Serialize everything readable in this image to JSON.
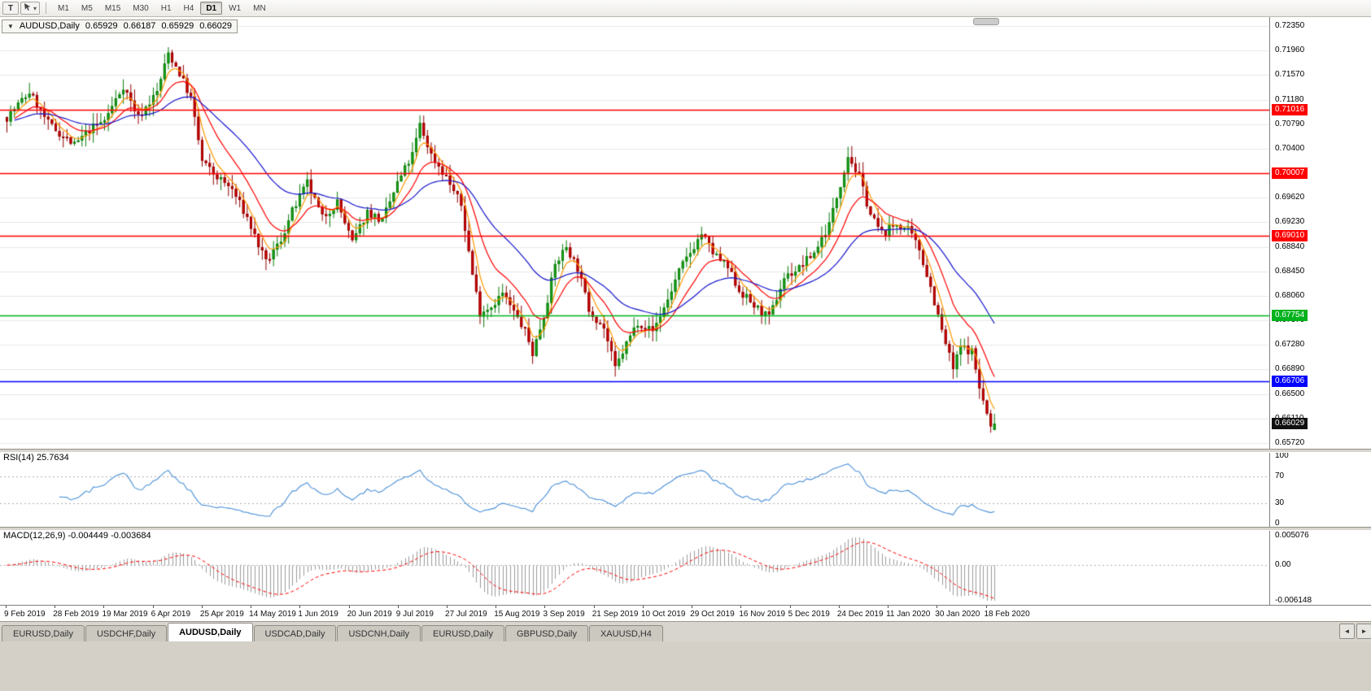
{
  "icons": {
    "dropdown": "▾",
    "tab_scroll_left": "◄",
    "tab_scroll_right": "►"
  },
  "toolbar": {
    "pointer_button_label": "T",
    "timeframes": [
      "M1",
      "M5",
      "M15",
      "M30",
      "H1",
      "H4",
      "D1",
      "W1",
      "MN"
    ],
    "active_timeframe": "D1"
  },
  "chart": {
    "symbol_header": {
      "collapse_icon": "▼",
      "title": "AUDUSD,Daily",
      "open": "0.65929",
      "high": "0.66187",
      "low": "0.65929",
      "close": "0.66029"
    },
    "price_axis": {
      "ticks": [
        "0.72350",
        "0.71960",
        "0.71570",
        "0.71180",
        "0.70790",
        "0.70400",
        "0.70010",
        "0.69620",
        "0.69230",
        "0.68840",
        "0.68450",
        "0.68060",
        "0.67670",
        "0.67280",
        "0.66890",
        "0.66500",
        "0.66110",
        "0.65720"
      ]
    },
    "levels": [
      {
        "price": 0.71016,
        "label": "0.71016",
        "color": "#FF0000",
        "width": 1.3
      },
      {
        "price": 0.70007,
        "label": "0.70007",
        "color": "#FF0000",
        "width": 1.3
      },
      {
        "price": 0.6901,
        "label": "0.69010",
        "color": "#FF0000",
        "width": 1.3
      },
      {
        "price": 0.67754,
        "label": "0.67754",
        "color": "#00B21C",
        "width": 1.7
      },
      {
        "price": 0.66706,
        "label": "0.66706",
        "color": "#0000FF",
        "width": 1.7
      }
    ],
    "current_price": {
      "value": 0.66029,
      "label": "0.66029",
      "bg": "#111111"
    }
  },
  "rsi": {
    "label": "RSI(14) 25.7634",
    "period": 14,
    "current": 25.7634,
    "axis_labels": [
      "100",
      "70",
      "30",
      "0"
    ],
    "axis_values": [
      100,
      70,
      30,
      0
    ],
    "guide_levels": [
      70,
      30
    ]
  },
  "macd": {
    "label": "MACD(12,26,9) -0.004449 -0.003684",
    "fast": 12,
    "slow": 26,
    "signal": 9,
    "current_macd": -0.004449,
    "current_signal": -0.003684,
    "axis_labels": [
      "0.005076",
      "0.00",
      "-0.006148"
    ],
    "axis_values": [
      0.005076,
      0,
      -0.006148
    ],
    "scale_max": 0.005076,
    "scale_min": -0.006148
  },
  "date_axis": {
    "labels": [
      "9 Feb 2019",
      "28 Feb 2019",
      "19 Mar 2019",
      "6 Apr 2019",
      "25 Apr 2019",
      "14 May 2019",
      "1 Jun 2019",
      "20 Jun 2019",
      "9 Jul 2019",
      "27 Jul 2019",
      "15 Aug 2019",
      "3 Sep 2019",
      "21 Sep 2019",
      "10 Oct 2019",
      "29 Oct 2019",
      "16 Nov 2019",
      "5 Dec 2019",
      "24 Dec 2019",
      "11 Jan 2020",
      "30 Jan 2020",
      "18 Feb 2020"
    ]
  },
  "tabs": {
    "items": [
      {
        "label": "EURUSD,Daily",
        "active": false
      },
      {
        "label": "USDCHF,Daily",
        "active": false
      },
      {
        "label": "AUDUSD,Daily",
        "active": true
      },
      {
        "label": "USDCAD,Daily",
        "active": false
      },
      {
        "label": "USDCNH,Daily",
        "active": false
      },
      {
        "label": "EURUSD,Daily",
        "active": false
      },
      {
        "label": "GBPUSD,Daily",
        "active": false
      },
      {
        "label": "XAUUSD,H4",
        "active": false
      }
    ]
  },
  "colors": {
    "up_fill": "#1FAF1F",
    "up_border": "#0A7A0A",
    "down_fill": "#E00000",
    "down_border": "#8F0000",
    "ma_fast": "#FF9900",
    "ma_mid": "#FF0000",
    "ma_slow": "#1414CC",
    "rsi_line": "#4A90D9",
    "macd_hist": "#9C9C9C",
    "macd_signal": "#FF0000",
    "grid": "#E8E8E8",
    "guide": "#B0B0B0"
  },
  "chart_data": {
    "type": "candlestick",
    "title": "AUDUSD,Daily",
    "symbol": "AUDUSD",
    "timeframe": "Daily",
    "candle_count": 264,
    "visible_price_range": [
      0.6555,
      0.7245
    ],
    "x_labels": [
      "9 Feb 2019",
      "28 Feb 2019",
      "19 Mar 2019",
      "6 Apr 2019",
      "25 Apr 2019",
      "14 May 2019",
      "1 Jun 2019",
      "20 Jun 2019",
      "9 Jul 2019",
      "27 Jul 2019",
      "15 Aug 2019",
      "3 Sep 2019",
      "21 Sep 2019",
      "10 Oct 2019",
      "29 Oct 2019",
      "16 Nov 2019",
      "5 Dec 2019",
      "24 Dec 2019",
      "11 Jan 2020",
      "30 Jan 2020",
      "18 Feb 2020"
    ],
    "current_ohlc": {
      "open": 0.65929,
      "high": 0.66187,
      "low": 0.65929,
      "close": 0.66029
    },
    "horizontal_levels": [
      0.71016,
      0.70007,
      0.6901,
      0.67754,
      0.66706
    ],
    "moving_averages": [
      {
        "name": "fast",
        "period": 5,
        "color": "#FF9900"
      },
      {
        "name": "medium",
        "period": 13,
        "color": "#FF0000"
      },
      {
        "name": "slow",
        "period": 34,
        "color": "#1414CC"
      }
    ],
    "indicators": [
      {
        "name": "RSI",
        "period": 14,
        "current": 25.7634,
        "range": [
          0,
          100
        ],
        "levels": [
          30,
          70
        ]
      },
      {
        "name": "MACD",
        "fast": 12,
        "slow": 26,
        "signal": 9,
        "current_macd": -0.004449,
        "current_signal": -0.003684,
        "range": [
          -0.006148,
          0.005076
        ]
      }
    ],
    "close_path_anchors": [
      [
        0,
        0.709
      ],
      [
        6,
        0.713
      ],
      [
        11,
        0.708
      ],
      [
        18,
        0.7045
      ],
      [
        22,
        0.707
      ],
      [
        26,
        0.7085
      ],
      [
        31,
        0.714
      ],
      [
        35,
        0.709
      ],
      [
        40,
        0.713
      ],
      [
        43,
        0.7192
      ],
      [
        46,
        0.716
      ],
      [
        49,
        0.712
      ],
      [
        52,
        0.702
      ],
      [
        55,
        0.7
      ],
      [
        60,
        0.6975
      ],
      [
        64,
        0.693
      ],
      [
        69,
        0.6858
      ],
      [
        73,
        0.6895
      ],
      [
        76,
        0.694
      ],
      [
        80,
        0.6985
      ],
      [
        84,
        0.693
      ],
      [
        88,
        0.6955
      ],
      [
        92,
        0.689
      ],
      [
        96,
        0.694
      ],
      [
        100,
        0.6925
      ],
      [
        104,
        0.6985
      ],
      [
        108,
        0.703
      ],
      [
        110,
        0.7078
      ],
      [
        113,
        0.703
      ],
      [
        117,
        0.6995
      ],
      [
        121,
        0.695
      ],
      [
        124,
        0.684
      ],
      [
        126,
        0.678
      ],
      [
        129,
        0.679
      ],
      [
        132,
        0.681
      ],
      [
        135,
        0.678
      ],
      [
        138,
        0.675
      ],
      [
        140,
        0.6715
      ],
      [
        143,
        0.6775
      ],
      [
        146,
        0.6855
      ],
      [
        149,
        0.6885
      ],
      [
        152,
        0.685
      ],
      [
        155,
        0.6785
      ],
      [
        159,
        0.6755
      ],
      [
        162,
        0.669
      ],
      [
        165,
        0.673
      ],
      [
        168,
        0.6765
      ],
      [
        172,
        0.675
      ],
      [
        176,
        0.68
      ],
      [
        179,
        0.6845
      ],
      [
        182,
        0.6875
      ],
      [
        185,
        0.6905
      ],
      [
        188,
        0.6875
      ],
      [
        192,
        0.685
      ],
      [
        195,
        0.6815
      ],
      [
        199,
        0.679
      ],
      [
        203,
        0.677
      ],
      [
        207,
        0.6835
      ],
      [
        211,
        0.685
      ],
      [
        215,
        0.6875
      ],
      [
        219,
        0.692
      ],
      [
        222,
        0.6985
      ],
      [
        224,
        0.703
      ],
      [
        227,
        0.6995
      ],
      [
        230,
        0.6935
      ],
      [
        233,
        0.6905
      ],
      [
        237,
        0.692
      ],
      [
        240,
        0.691
      ],
      [
        243,
        0.688
      ],
      [
        246,
        0.682
      ],
      [
        249,
        0.675
      ],
      [
        252,
        0.669
      ],
      [
        254,
        0.6725
      ],
      [
        257,
        0.6718
      ],
      [
        259,
        0.666
      ],
      [
        261,
        0.6618
      ],
      [
        262,
        0.6596
      ],
      [
        263,
        0.66029
      ]
    ]
  }
}
